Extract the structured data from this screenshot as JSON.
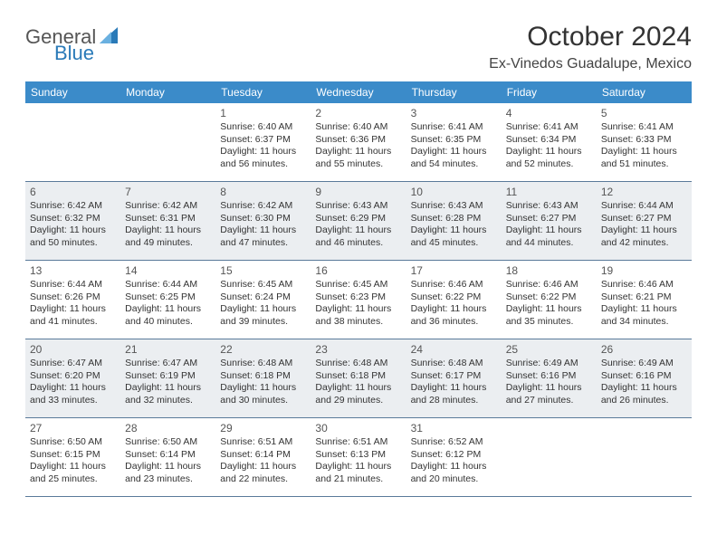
{
  "logo": {
    "text_general": "General",
    "text_blue": "Blue",
    "icon_color": "#2a7ab8"
  },
  "header": {
    "month_year": "October 2024",
    "location": "Ex-Vinedos Guadalupe, Mexico"
  },
  "colors": {
    "header_bg": "#3b8bc9",
    "header_text": "#ffffff",
    "shaded_row_bg": "#ebeef1",
    "border_color": "#5a7a9a"
  },
  "day_labels": [
    "Sunday",
    "Monday",
    "Tuesday",
    "Wednesday",
    "Thursday",
    "Friday",
    "Saturday"
  ],
  "weeks": [
    {
      "shaded": false,
      "days": [
        {
          "dnum": "",
          "sunrise": "",
          "sunset": "",
          "daylight": ""
        },
        {
          "dnum": "",
          "sunrise": "",
          "sunset": "",
          "daylight": ""
        },
        {
          "dnum": "1",
          "sunrise": "Sunrise: 6:40 AM",
          "sunset": "Sunset: 6:37 PM",
          "daylight": "Daylight: 11 hours and 56 minutes."
        },
        {
          "dnum": "2",
          "sunrise": "Sunrise: 6:40 AM",
          "sunset": "Sunset: 6:36 PM",
          "daylight": "Daylight: 11 hours and 55 minutes."
        },
        {
          "dnum": "3",
          "sunrise": "Sunrise: 6:41 AM",
          "sunset": "Sunset: 6:35 PM",
          "daylight": "Daylight: 11 hours and 54 minutes."
        },
        {
          "dnum": "4",
          "sunrise": "Sunrise: 6:41 AM",
          "sunset": "Sunset: 6:34 PM",
          "daylight": "Daylight: 11 hours and 52 minutes."
        },
        {
          "dnum": "5",
          "sunrise": "Sunrise: 6:41 AM",
          "sunset": "Sunset: 6:33 PM",
          "daylight": "Daylight: 11 hours and 51 minutes."
        }
      ]
    },
    {
      "shaded": true,
      "days": [
        {
          "dnum": "6",
          "sunrise": "Sunrise: 6:42 AM",
          "sunset": "Sunset: 6:32 PM",
          "daylight": "Daylight: 11 hours and 50 minutes."
        },
        {
          "dnum": "7",
          "sunrise": "Sunrise: 6:42 AM",
          "sunset": "Sunset: 6:31 PM",
          "daylight": "Daylight: 11 hours and 49 minutes."
        },
        {
          "dnum": "8",
          "sunrise": "Sunrise: 6:42 AM",
          "sunset": "Sunset: 6:30 PM",
          "daylight": "Daylight: 11 hours and 47 minutes."
        },
        {
          "dnum": "9",
          "sunrise": "Sunrise: 6:43 AM",
          "sunset": "Sunset: 6:29 PM",
          "daylight": "Daylight: 11 hours and 46 minutes."
        },
        {
          "dnum": "10",
          "sunrise": "Sunrise: 6:43 AM",
          "sunset": "Sunset: 6:28 PM",
          "daylight": "Daylight: 11 hours and 45 minutes."
        },
        {
          "dnum": "11",
          "sunrise": "Sunrise: 6:43 AM",
          "sunset": "Sunset: 6:27 PM",
          "daylight": "Daylight: 11 hours and 44 minutes."
        },
        {
          "dnum": "12",
          "sunrise": "Sunrise: 6:44 AM",
          "sunset": "Sunset: 6:27 PM",
          "daylight": "Daylight: 11 hours and 42 minutes."
        }
      ]
    },
    {
      "shaded": false,
      "days": [
        {
          "dnum": "13",
          "sunrise": "Sunrise: 6:44 AM",
          "sunset": "Sunset: 6:26 PM",
          "daylight": "Daylight: 11 hours and 41 minutes."
        },
        {
          "dnum": "14",
          "sunrise": "Sunrise: 6:44 AM",
          "sunset": "Sunset: 6:25 PM",
          "daylight": "Daylight: 11 hours and 40 minutes."
        },
        {
          "dnum": "15",
          "sunrise": "Sunrise: 6:45 AM",
          "sunset": "Sunset: 6:24 PM",
          "daylight": "Daylight: 11 hours and 39 minutes."
        },
        {
          "dnum": "16",
          "sunrise": "Sunrise: 6:45 AM",
          "sunset": "Sunset: 6:23 PM",
          "daylight": "Daylight: 11 hours and 38 minutes."
        },
        {
          "dnum": "17",
          "sunrise": "Sunrise: 6:46 AM",
          "sunset": "Sunset: 6:22 PM",
          "daylight": "Daylight: 11 hours and 36 minutes."
        },
        {
          "dnum": "18",
          "sunrise": "Sunrise: 6:46 AM",
          "sunset": "Sunset: 6:22 PM",
          "daylight": "Daylight: 11 hours and 35 minutes."
        },
        {
          "dnum": "19",
          "sunrise": "Sunrise: 6:46 AM",
          "sunset": "Sunset: 6:21 PM",
          "daylight": "Daylight: 11 hours and 34 minutes."
        }
      ]
    },
    {
      "shaded": true,
      "days": [
        {
          "dnum": "20",
          "sunrise": "Sunrise: 6:47 AM",
          "sunset": "Sunset: 6:20 PM",
          "daylight": "Daylight: 11 hours and 33 minutes."
        },
        {
          "dnum": "21",
          "sunrise": "Sunrise: 6:47 AM",
          "sunset": "Sunset: 6:19 PM",
          "daylight": "Daylight: 11 hours and 32 minutes."
        },
        {
          "dnum": "22",
          "sunrise": "Sunrise: 6:48 AM",
          "sunset": "Sunset: 6:18 PM",
          "daylight": "Daylight: 11 hours and 30 minutes."
        },
        {
          "dnum": "23",
          "sunrise": "Sunrise: 6:48 AM",
          "sunset": "Sunset: 6:18 PM",
          "daylight": "Daylight: 11 hours and 29 minutes."
        },
        {
          "dnum": "24",
          "sunrise": "Sunrise: 6:48 AM",
          "sunset": "Sunset: 6:17 PM",
          "daylight": "Daylight: 11 hours and 28 minutes."
        },
        {
          "dnum": "25",
          "sunrise": "Sunrise: 6:49 AM",
          "sunset": "Sunset: 6:16 PM",
          "daylight": "Daylight: 11 hours and 27 minutes."
        },
        {
          "dnum": "26",
          "sunrise": "Sunrise: 6:49 AM",
          "sunset": "Sunset: 6:16 PM",
          "daylight": "Daylight: 11 hours and 26 minutes."
        }
      ]
    },
    {
      "shaded": false,
      "days": [
        {
          "dnum": "27",
          "sunrise": "Sunrise: 6:50 AM",
          "sunset": "Sunset: 6:15 PM",
          "daylight": "Daylight: 11 hours and 25 minutes."
        },
        {
          "dnum": "28",
          "sunrise": "Sunrise: 6:50 AM",
          "sunset": "Sunset: 6:14 PM",
          "daylight": "Daylight: 11 hours and 23 minutes."
        },
        {
          "dnum": "29",
          "sunrise": "Sunrise: 6:51 AM",
          "sunset": "Sunset: 6:14 PM",
          "daylight": "Daylight: 11 hours and 22 minutes."
        },
        {
          "dnum": "30",
          "sunrise": "Sunrise: 6:51 AM",
          "sunset": "Sunset: 6:13 PM",
          "daylight": "Daylight: 11 hours and 21 minutes."
        },
        {
          "dnum": "31",
          "sunrise": "Sunrise: 6:52 AM",
          "sunset": "Sunset: 6:12 PM",
          "daylight": "Daylight: 11 hours and 20 minutes."
        },
        {
          "dnum": "",
          "sunrise": "",
          "sunset": "",
          "daylight": ""
        },
        {
          "dnum": "",
          "sunrise": "",
          "sunset": "",
          "daylight": ""
        }
      ]
    }
  ]
}
